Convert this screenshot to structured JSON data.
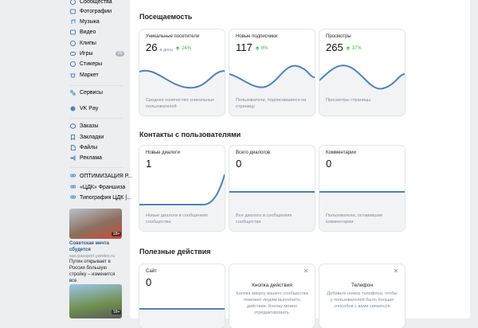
{
  "sidebar": {
    "menu": [
      {
        "label": "Сообщества"
      },
      {
        "label": "Фотографии"
      },
      {
        "label": "Музыка"
      },
      {
        "label": "Видео"
      },
      {
        "label": "Клипы"
      },
      {
        "label": "Игры",
        "badge": "26"
      },
      {
        "label": "Стикеры"
      },
      {
        "label": "Маркет"
      },
      {
        "label": "Сервисы"
      },
      {
        "label": "VK Pay"
      },
      {
        "label": "Заказы"
      },
      {
        "label": "Закладки"
      },
      {
        "label": "Файлы"
      },
      {
        "label": "Реклама"
      },
      {
        "label": "ОПТИМИЗАЦИЯ Р..."
      },
      {
        "label": "«ЦДК» Франшиза"
      },
      {
        "label": "Типография ЦДК |..."
      }
    ],
    "ad": {
      "badge": "18+",
      "title": "Советская мечта сбудется",
      "source": "sao.passport.yandex.ru",
      "text": "Путин открывает в России большую стройку – изменится все",
      "badge2": "18+"
    }
  },
  "sections": [
    {
      "title": "Посещаемость",
      "cards": [
        {
          "label": "Уникальные посетители",
          "value": "26",
          "unit": "в день",
          "change": "24%",
          "note": "Среднее количество уникальных пользователей"
        },
        {
          "label": "Новые подписчики",
          "value": "117",
          "change": "8%",
          "note": "Пользователи, подписавшиеся на страницу"
        },
        {
          "label": "Просмотры",
          "value": "265",
          "change": "37%",
          "note": "Просмотры страницы"
        }
      ]
    },
    {
      "title": "Контакты с пользователями",
      "cards": [
        {
          "label": "Новые диалоги",
          "value": "1",
          "note": "Новые диалоги в сообщениях сообщества"
        },
        {
          "label": "Всего диалогов",
          "value": "0",
          "note": "Все диалоги в сообщениях сообщества"
        },
        {
          "label": "Комментарии",
          "value": "0",
          "note": "Пользователи, оставившие комментарии"
        }
      ]
    },
    {
      "title": "Полезные действия",
      "cards": [
        {
          "label": "Сайт",
          "value": "0"
        },
        {
          "title": "Кнопка действия",
          "text": "Кнопка вверху вашего сообщества поможет людям выполнить действие. Кнопку можно отредактировать."
        },
        {
          "title": "Телефон",
          "text": "Добавьте номер телефона, чтобы у пользователей было больше способов с вами связаться"
        }
      ]
    }
  ]
}
